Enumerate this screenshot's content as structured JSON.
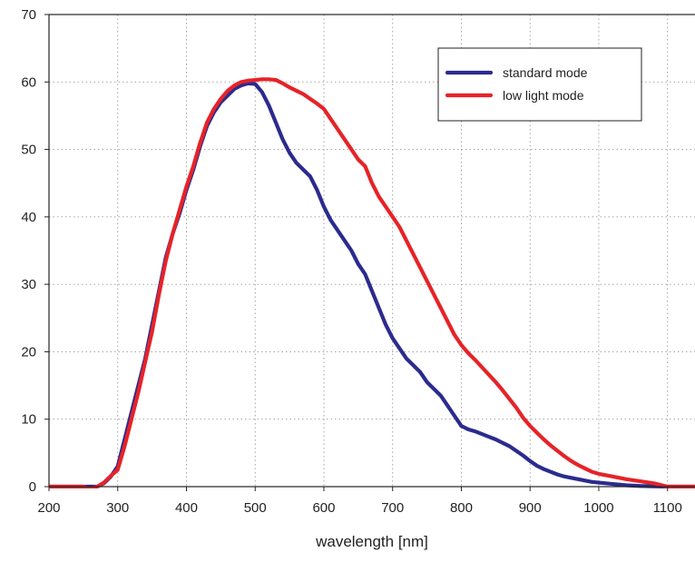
{
  "chart_data": {
    "type": "line",
    "title": "",
    "xlabel": "wavelength [nm]",
    "ylabel": "",
    "xlim": [
      200,
      1140
    ],
    "ylim": [
      0,
      70
    ],
    "x_ticks": [
      200,
      300,
      400,
      500,
      600,
      700,
      800,
      900,
      1000,
      1100
    ],
    "y_ticks": [
      0,
      10,
      20,
      30,
      40,
      50,
      60,
      70
    ],
    "grid": true,
    "legend_position": "top-right",
    "series": [
      {
        "name": "standard mode",
        "color": "#2b2b8f",
        "points": [
          [
            200,
            0
          ],
          [
            250,
            0
          ],
          [
            260,
            0
          ],
          [
            270,
            0
          ],
          [
            280,
            0.5
          ],
          [
            290,
            1.5
          ],
          [
            300,
            3
          ],
          [
            310,
            7
          ],
          [
            320,
            11
          ],
          [
            330,
            15
          ],
          [
            340,
            19
          ],
          [
            350,
            24
          ],
          [
            360,
            29
          ],
          [
            370,
            34
          ],
          [
            380,
            37.5
          ],
          [
            390,
            40.5
          ],
          [
            400,
            44
          ],
          [
            410,
            47
          ],
          [
            420,
            50.5
          ],
          [
            430,
            53.5
          ],
          [
            440,
            55.5
          ],
          [
            450,
            57
          ],
          [
            460,
            58
          ],
          [
            470,
            59
          ],
          [
            480,
            59.5
          ],
          [
            490,
            59.8
          ],
          [
            500,
            59.7
          ],
          [
            510,
            58.5
          ],
          [
            520,
            56.5
          ],
          [
            530,
            54
          ],
          [
            540,
            51.5
          ],
          [
            550,
            49.5
          ],
          [
            560,
            48
          ],
          [
            570,
            47
          ],
          [
            580,
            46
          ],
          [
            590,
            44
          ],
          [
            600,
            41.5
          ],
          [
            610,
            39.5
          ],
          [
            620,
            38
          ],
          [
            630,
            36.5
          ],
          [
            640,
            35
          ],
          [
            650,
            33
          ],
          [
            660,
            31.5
          ],
          [
            670,
            29
          ],
          [
            680,
            26.5
          ],
          [
            690,
            24
          ],
          [
            700,
            22
          ],
          [
            710,
            20.5
          ],
          [
            720,
            19
          ],
          [
            730,
            18
          ],
          [
            740,
            17
          ],
          [
            750,
            15.5
          ],
          [
            760,
            14.5
          ],
          [
            770,
            13.5
          ],
          [
            780,
            12
          ],
          [
            790,
            10.5
          ],
          [
            800,
            9
          ],
          [
            810,
            8.5
          ],
          [
            820,
            8.2
          ],
          [
            830,
            7.8
          ],
          [
            840,
            7.4
          ],
          [
            850,
            7
          ],
          [
            860,
            6.5
          ],
          [
            870,
            6
          ],
          [
            880,
            5.3
          ],
          [
            890,
            4.6
          ],
          [
            900,
            3.8
          ],
          [
            910,
            3.1
          ],
          [
            920,
            2.6
          ],
          [
            930,
            2.2
          ],
          [
            940,
            1.8
          ],
          [
            950,
            1.5
          ],
          [
            960,
            1.3
          ],
          [
            970,
            1.1
          ],
          [
            980,
            0.9
          ],
          [
            990,
            0.7
          ],
          [
            1000,
            0.6
          ],
          [
            1020,
            0.4
          ],
          [
            1040,
            0.2
          ],
          [
            1060,
            0.1
          ],
          [
            1080,
            0.05
          ],
          [
            1100,
            0
          ],
          [
            1140,
            0
          ]
        ]
      },
      {
        "name": "low light mode",
        "color": "#e62328",
        "points": [
          [
            200,
            0
          ],
          [
            250,
            0
          ],
          [
            260,
            -0.3
          ],
          [
            270,
            0
          ],
          [
            280,
            0.6
          ],
          [
            290,
            1.6
          ],
          [
            300,
            2.5
          ],
          [
            310,
            6
          ],
          [
            320,
            10
          ],
          [
            330,
            14
          ],
          [
            340,
            18.5
          ],
          [
            350,
            23
          ],
          [
            360,
            28.5
          ],
          [
            370,
            33.5
          ],
          [
            380,
            37.5
          ],
          [
            390,
            41
          ],
          [
            400,
            44.5
          ],
          [
            410,
            47.5
          ],
          [
            420,
            51
          ],
          [
            430,
            54
          ],
          [
            440,
            56
          ],
          [
            450,
            57.5
          ],
          [
            460,
            58.7
          ],
          [
            470,
            59.5
          ],
          [
            480,
            60
          ],
          [
            490,
            60.2
          ],
          [
            500,
            60.3
          ],
          [
            510,
            60.4
          ],
          [
            520,
            60.4
          ],
          [
            530,
            60.3
          ],
          [
            540,
            59.8
          ],
          [
            550,
            59.2
          ],
          [
            560,
            58.7
          ],
          [
            570,
            58.2
          ],
          [
            580,
            57.5
          ],
          [
            590,
            56.8
          ],
          [
            600,
            56
          ],
          [
            610,
            54.5
          ],
          [
            620,
            53
          ],
          [
            630,
            51.5
          ],
          [
            640,
            50
          ],
          [
            650,
            48.5
          ],
          [
            660,
            47.5
          ],
          [
            670,
            45
          ],
          [
            680,
            43
          ],
          [
            690,
            41.5
          ],
          [
            700,
            40
          ],
          [
            710,
            38.5
          ],
          [
            720,
            36.5
          ],
          [
            730,
            34.5
          ],
          [
            740,
            32.5
          ],
          [
            750,
            30.5
          ],
          [
            760,
            28.5
          ],
          [
            770,
            26.5
          ],
          [
            780,
            24.5
          ],
          [
            790,
            22.5
          ],
          [
            800,
            21
          ],
          [
            810,
            19.8
          ],
          [
            820,
            18.8
          ],
          [
            830,
            17.7
          ],
          [
            840,
            16.6
          ],
          [
            850,
            15.5
          ],
          [
            860,
            14.3
          ],
          [
            870,
            13
          ],
          [
            880,
            11.7
          ],
          [
            890,
            10.2
          ],
          [
            900,
            9
          ],
          [
            910,
            8
          ],
          [
            920,
            7
          ],
          [
            930,
            6.1
          ],
          [
            940,
            5.3
          ],
          [
            950,
            4.5
          ],
          [
            960,
            3.8
          ],
          [
            970,
            3.2
          ],
          [
            980,
            2.7
          ],
          [
            990,
            2.2
          ],
          [
            1000,
            1.9
          ],
          [
            1020,
            1.5
          ],
          [
            1040,
            1.1
          ],
          [
            1060,
            0.8
          ],
          [
            1080,
            0.5
          ],
          [
            1100,
            0
          ],
          [
            1140,
            0
          ]
        ]
      }
    ]
  }
}
